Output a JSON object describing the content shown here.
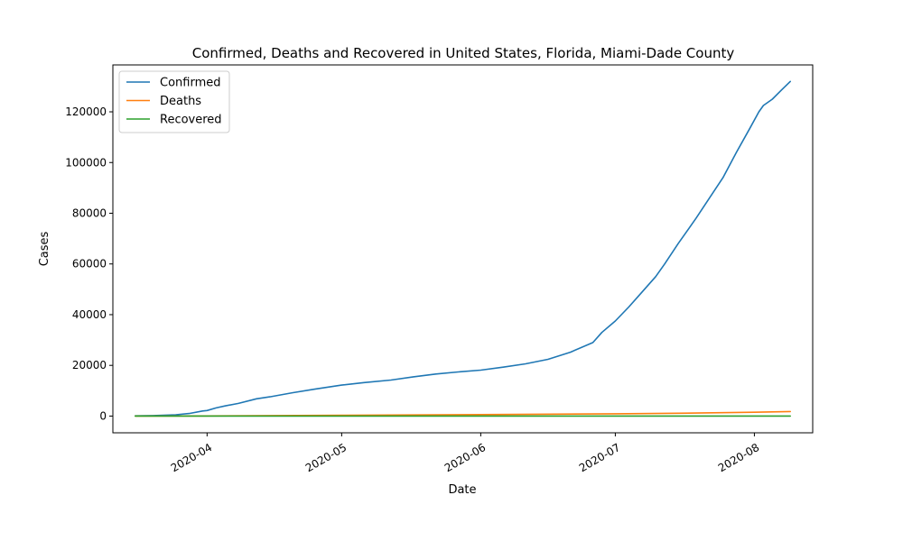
{
  "chart_data": {
    "type": "line",
    "title": "Confirmed, Deaths and Recovered in United States, Florida, Miami-Dade County",
    "xlabel": "Date",
    "ylabel": "Cases",
    "x_tick_labels": [
      "2020-04",
      "2020-05",
      "2020-06",
      "2020-07",
      "2020-08"
    ],
    "x_tick_dates": [
      "2020-04-01",
      "2020-05-01",
      "2020-06-01",
      "2020-07-01",
      "2020-08-01"
    ],
    "y_tick_labels": [
      "0",
      "20000",
      "40000",
      "60000",
      "80000",
      "100000",
      "120000"
    ],
    "y_ticks": [
      0,
      20000,
      40000,
      60000,
      80000,
      100000,
      120000
    ],
    "xlim": [
      "2020-03-11",
      "2020-08-14"
    ],
    "ylim": [
      -6600,
      138500
    ],
    "grid": false,
    "legend_position": "top-left",
    "series": [
      {
        "name": "Confirmed",
        "color": "#1f77b4",
        "points": [
          [
            "2020-03-16",
            100
          ],
          [
            "2020-03-20",
            200
          ],
          [
            "2020-03-25",
            500
          ],
          [
            "2020-03-28",
            1000
          ],
          [
            "2020-03-31",
            2000
          ],
          [
            "2020-04-01",
            2200
          ],
          [
            "2020-04-03",
            3200
          ],
          [
            "2020-04-05",
            4000
          ],
          [
            "2020-04-08",
            5000
          ],
          [
            "2020-04-12",
            6800
          ],
          [
            "2020-04-15",
            7600
          ],
          [
            "2020-04-20",
            9200
          ],
          [
            "2020-04-25",
            10600
          ],
          [
            "2020-05-01",
            12200
          ],
          [
            "2020-05-06",
            13200
          ],
          [
            "2020-05-12",
            14200
          ],
          [
            "2020-05-17",
            15500
          ],
          [
            "2020-05-22",
            16600
          ],
          [
            "2020-05-27",
            17400
          ],
          [
            "2020-06-01",
            18100
          ],
          [
            "2020-06-06",
            19300
          ],
          [
            "2020-06-11",
            20600
          ],
          [
            "2020-06-16",
            22400
          ],
          [
            "2020-06-21",
            25200
          ],
          [
            "2020-06-26",
            29000
          ],
          [
            "2020-06-28",
            33000
          ],
          [
            "2020-07-01",
            37500
          ],
          [
            "2020-07-04",
            43000
          ],
          [
            "2020-07-07",
            49000
          ],
          [
            "2020-07-10",
            55000
          ],
          [
            "2020-07-12",
            60000
          ],
          [
            "2020-07-15",
            68000
          ],
          [
            "2020-07-17",
            73000
          ],
          [
            "2020-07-19",
            78000
          ],
          [
            "2020-07-22",
            86000
          ],
          [
            "2020-07-25",
            94000
          ],
          [
            "2020-07-28",
            104000
          ],
          [
            "2020-07-31",
            113500
          ],
          [
            "2020-08-02",
            120000
          ],
          [
            "2020-08-03",
            122500
          ],
          [
            "2020-08-05",
            125000
          ],
          [
            "2020-08-07",
            128500
          ],
          [
            "2020-08-09",
            132000
          ]
        ]
      },
      {
        "name": "Deaths",
        "color": "#ff7f0e",
        "points": [
          [
            "2020-03-16",
            0
          ],
          [
            "2020-04-01",
            50
          ],
          [
            "2020-05-01",
            300
          ],
          [
            "2020-06-01",
            600
          ],
          [
            "2020-07-01",
            900
          ],
          [
            "2020-07-15",
            1100
          ],
          [
            "2020-08-01",
            1500
          ],
          [
            "2020-08-09",
            1800
          ]
        ]
      },
      {
        "name": "Recovered",
        "color": "#2ca02c",
        "points": [
          [
            "2020-03-16",
            0
          ],
          [
            "2020-08-09",
            0
          ]
        ]
      }
    ]
  }
}
